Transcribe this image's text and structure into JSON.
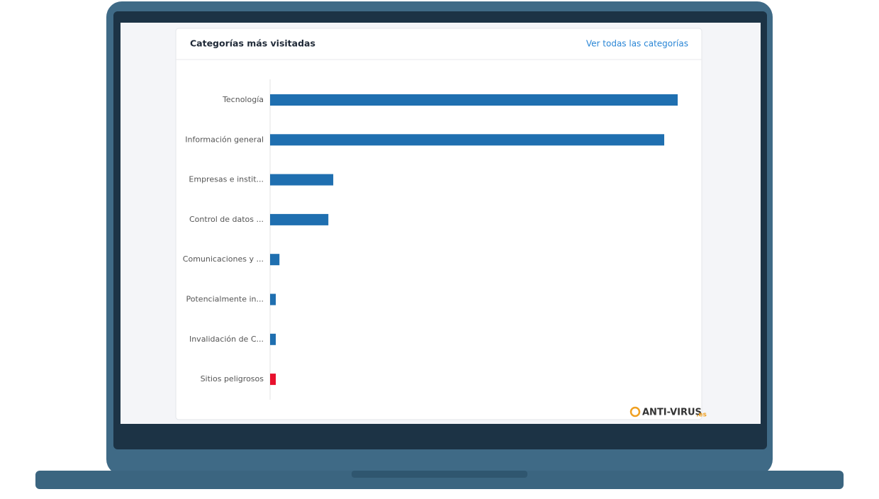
{
  "header": {
    "title": "Categorías más visitadas",
    "link": "Ver todas las categorías"
  },
  "chart_data": {
    "type": "bar",
    "orientation": "horizontal",
    "categories": [
      "Tecnología",
      "Información general",
      "Empresas e instit...",
      "Control de datos ...",
      "Comunicaciones y ...",
      "Potencialmente in...",
      "Invalidación de C...",
      "Sitios peligrosos"
    ],
    "values": [
      100,
      96.7,
      15.5,
      14.3,
      2.3,
      1.4,
      1.4,
      1.4
    ],
    "colors": [
      "#1f6fb0",
      "#1f6fb0",
      "#1f6fb0",
      "#1f6fb0",
      "#1f6fb0",
      "#1f6fb0",
      "#1f6fb0",
      "#e8112d"
    ],
    "xlim": [
      0,
      100
    ]
  },
  "watermark": {
    "brand": "ANTI-VIRUS",
    "suffix": ".es"
  }
}
